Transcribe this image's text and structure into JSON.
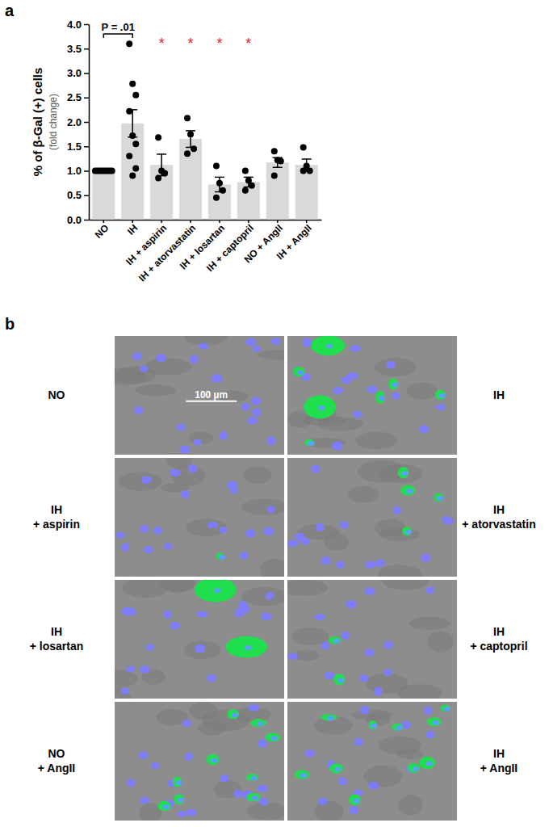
{
  "chart_data": {
    "type": "bar",
    "y_label": "% of β-Gal (+) cells",
    "y_label_sub": "(fold change)",
    "categories": [
      "NO",
      "IH",
      "IH + aspirin",
      "IH + atorvastatin",
      "IH + losartan",
      "IH + captopril",
      "NO + AngII",
      "IH + AngII"
    ],
    "values": [
      1.0,
      1.97,
      1.12,
      1.65,
      0.72,
      0.77,
      1.17,
      1.12
    ],
    "errors": [
      0,
      0.28,
      0.22,
      0.17,
      0.15,
      0.1,
      0.1,
      0.12
    ],
    "points": [
      [
        1.0,
        1.0,
        1.0,
        1.0,
        1.0,
        1.0,
        1.0,
        1.0,
        1.0
      ],
      [
        3.6,
        2.78,
        2.55,
        2.22,
        1.72,
        1.55,
        1.3,
        0.9,
        1.05
      ],
      [
        1.68,
        1.0,
        0.95,
        0.85
      ],
      [
        2.08,
        1.75,
        1.45,
        1.35
      ],
      [
        1.1,
        0.75,
        0.6,
        0.45
      ],
      [
        1.0,
        0.8,
        0.7,
        0.6
      ],
      [
        1.4,
        1.22,
        1.2,
        0.9
      ],
      [
        1.48,
        1.1,
        1.0,
        1.0
      ]
    ],
    "color": "#d9d9d9",
    "ylim": [
      0,
      4
    ],
    "yticks": [
      {
        "value": 0,
        "label": "0.0"
      },
      0.5,
      {
        "value": 1,
        "label": "1.0"
      },
      1.5,
      {
        "value": 2,
        "label": "2.0"
      },
      2.5,
      {
        "value": 3,
        "label": "3.0"
      },
      3.5,
      {
        "value": 4,
        "label": "4.0"
      }
    ],
    "annotations": [
      {
        "text": "P = .01",
        "between": [
          "NO",
          "IH"
        ]
      },
      {
        "text": "*",
        "over": "IH + aspirin",
        "color": "#e8262b"
      },
      {
        "text": "*",
        "over": "IH + atorvastatin",
        "color": "#e8262b"
      },
      {
        "text": "*",
        "over": "IH + losartan",
        "color": "#e8262b"
      },
      {
        "text": "*",
        "over": "IH + captopril",
        "color": "#e8262b"
      }
    ]
  },
  "figure": {
    "panel_labels": [
      "a",
      "b"
    ],
    "scale_bar": "100 µm",
    "panels": [
      {
        "label": [
          "NO"
        ]
      },
      {
        "label": [
          "IH"
        ]
      },
      {
        "label": [
          "IH",
          "+ aspirin"
        ]
      },
      {
        "label": [
          "IH",
          "+ atorvastatin"
        ]
      },
      {
        "label": [
          "IH",
          "+ losartan"
        ]
      },
      {
        "label": [
          "IH",
          "+ captopril"
        ]
      },
      {
        "label": [
          "NO",
          "+ AngII"
        ]
      },
      {
        "label": [
          "IH",
          "+ AngII"
        ]
      }
    ]
  }
}
